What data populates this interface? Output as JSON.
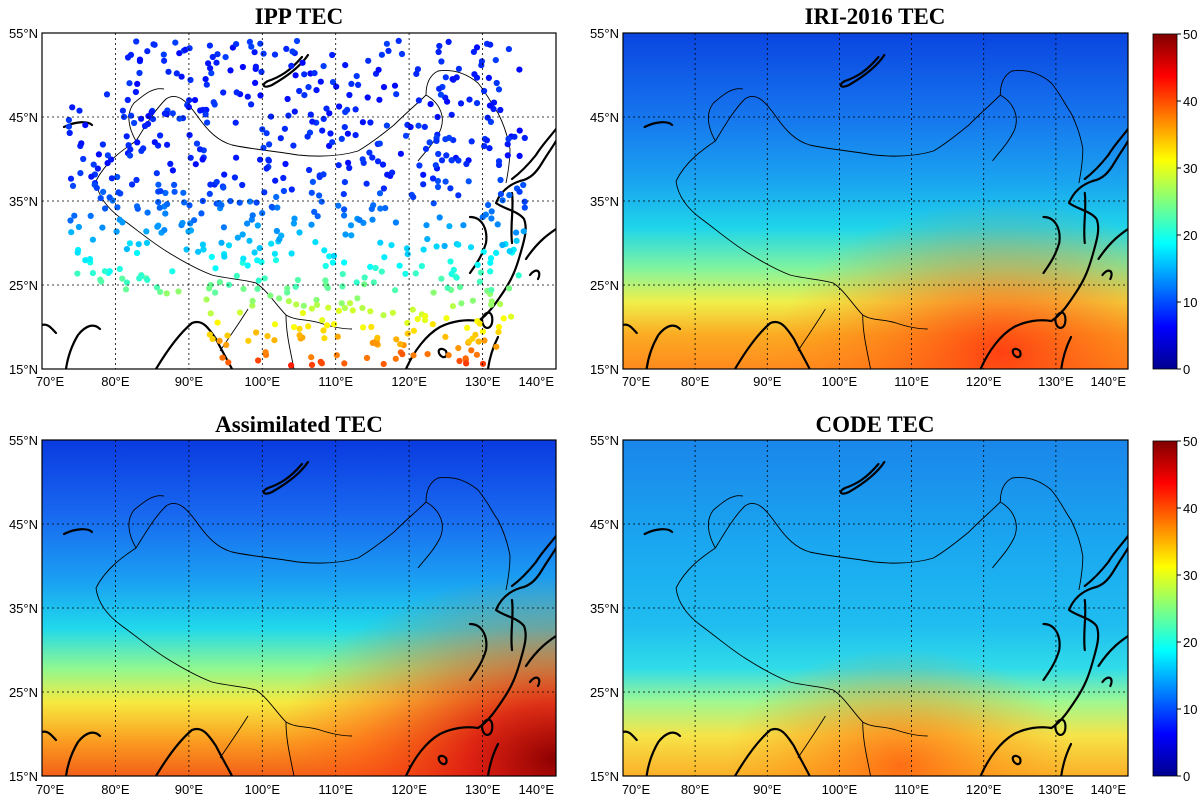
{
  "figure": {
    "panels": [
      {
        "id": "ipp",
        "title": "IPP TEC",
        "kind": "points",
        "show_grid": true,
        "colorbar": false,
        "lat_labels": [
          "55°N",
          "45°N",
          "35°N",
          "25°N",
          "15°N"
        ],
        "lon_labels": [
          "70°E",
          "80°E",
          "90°E",
          "100°E",
          "110°E",
          "120°E",
          "130°E",
          "140°E"
        ]
      },
      {
        "id": "iri",
        "title": "IRI-2016 TEC",
        "kind": "field",
        "show_grid": true,
        "colorbar": true,
        "cb_ticks": [
          "50",
          "40",
          "30",
          "20",
          "10",
          "0"
        ],
        "lat_labels": [
          "55°N",
          "45°N",
          "35°N",
          "25°N",
          "15°N"
        ],
        "lon_labels": [
          "70°E",
          "80°E",
          "90°E",
          "100°E",
          "110°E",
          "120°E",
          "130°E",
          "140°E"
        ]
      },
      {
        "id": "assim",
        "title": "Assimilated TEC",
        "kind": "field",
        "show_grid": true,
        "colorbar": false,
        "lat_labels": [
          "55°N",
          "45°N",
          "35°N",
          "25°N",
          "15°N"
        ],
        "lon_labels": [
          "70°E",
          "80°E",
          "90°E",
          "100°E",
          "110°E",
          "120°E",
          "130°E",
          "140°E"
        ]
      },
      {
        "id": "code",
        "title": "CODE TEC",
        "kind": "field",
        "show_grid": true,
        "colorbar": true,
        "cb_ticks": [
          "50",
          "40",
          "30",
          "20",
          "10",
          "0"
        ],
        "lat_labels": [
          "55°N",
          "45°N",
          "35°N",
          "25°N",
          "15°N"
        ],
        "lon_labels": [
          "70°E",
          "80°E",
          "90°E",
          "100°E",
          "110°E",
          "120°E",
          "130°E",
          "140°E"
        ]
      }
    ],
    "colormap": "jet",
    "color_range": [
      0,
      50
    ],
    "extent": {
      "lon": [
        70,
        140
      ],
      "lat": [
        15,
        55
      ]
    }
  }
}
